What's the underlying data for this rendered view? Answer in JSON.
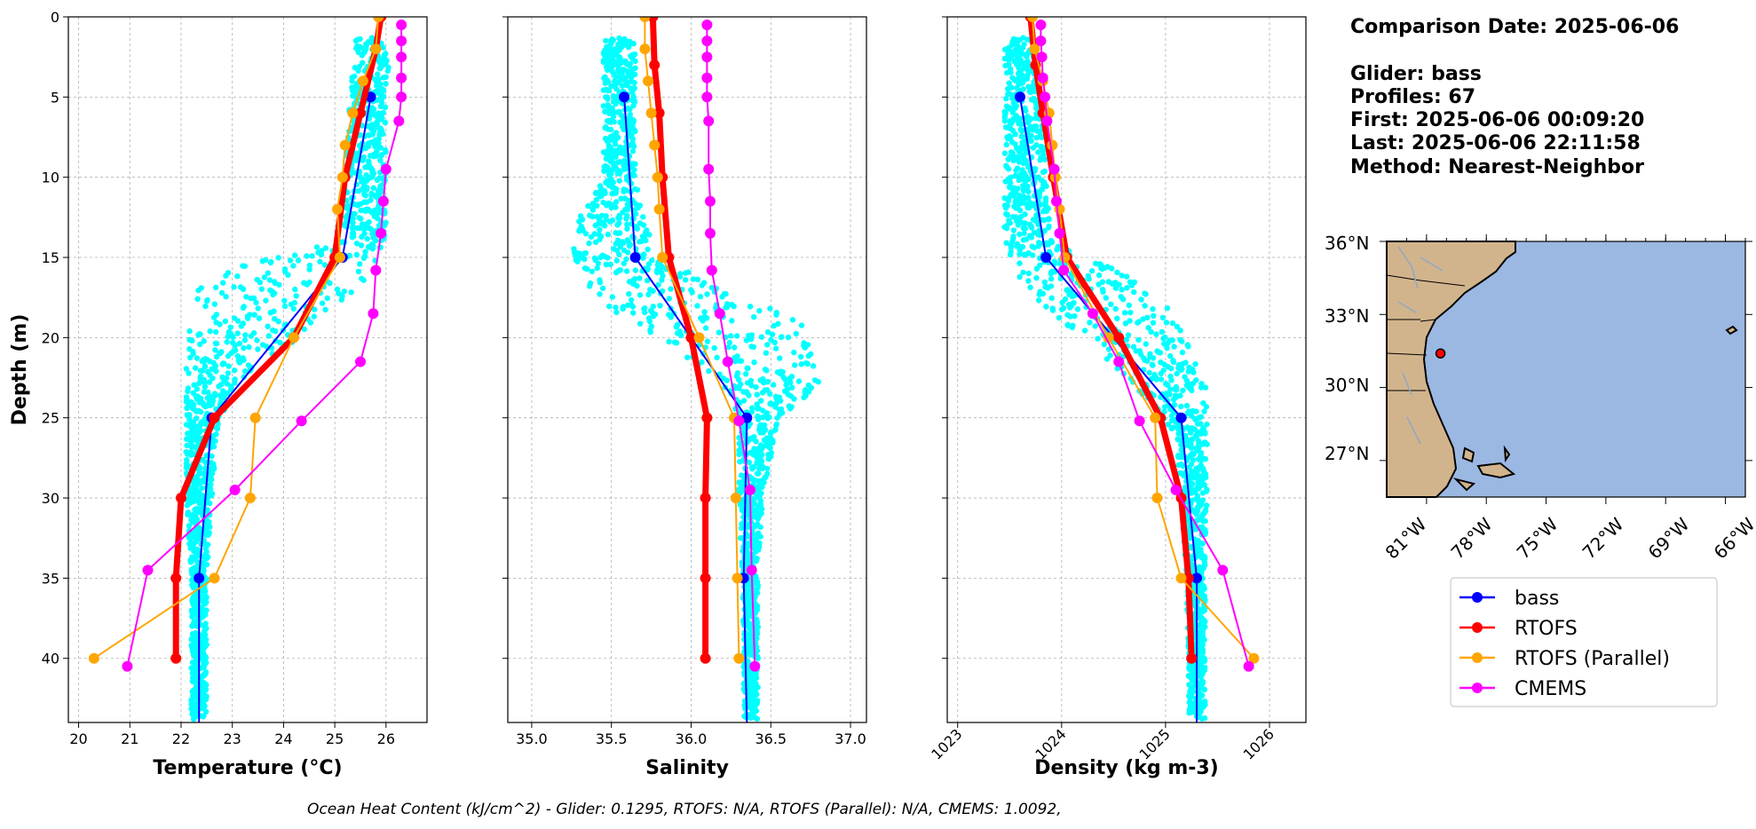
{
  "info": {
    "comparison_date": "Comparison Date: 2025-06-06",
    "glider": "Glider: bass",
    "profiles": "Profiles: 67",
    "first": "First: 2025-06-06 00:09:20",
    "last": "Last: 2025-06-06 22:11:58",
    "method": "Method: Nearest-Neighbor"
  },
  "footer": "Ocean Heat Content (kJ/cm^2) - Glider: 0.1295,  RTOFS: N/A,  RTOFS (Parallel): N/A,  CMEMS: 1.0092,",
  "colors": {
    "glider_points": "#00ffff",
    "bass": "#0000ff",
    "rtofs": "#ff0000",
    "rtofs_parallel": "#ffa500",
    "cmems": "#ff00ff",
    "ocean": "#9bb8e2",
    "land": "#d2b48c"
  },
  "legend": [
    {
      "name": "bass",
      "color": "#0000ff"
    },
    {
      "name": "RTOFS",
      "color": "#ff0000"
    },
    {
      "name": "RTOFS (Parallel)",
      "color": "#ffa500"
    },
    {
      "name": "CMEMS",
      "color": "#ff00ff"
    }
  ],
  "map": {
    "lat_labels": [
      "36°N",
      "33°N",
      "30°N",
      "27°N"
    ],
    "lon_labels": [
      "81°W",
      "78°W",
      "75°W",
      "72°W",
      "69°W",
      "66°W"
    ],
    "marker": {
      "lon": -80.3,
      "lat": 31.4
    }
  },
  "chart_data": [
    {
      "type": "line",
      "id": "temperature",
      "xlabel": "Temperature (°C)",
      "ylabel": "Depth (m)",
      "xlim": [
        19.8,
        26.8
      ],
      "ylim": [
        44,
        0
      ],
      "xticks": [
        20,
        21,
        22,
        23,
        24,
        25,
        26
      ],
      "yticks": [
        0,
        5,
        10,
        15,
        20,
        25,
        30,
        35,
        40
      ],
      "grid": true,
      "scatter_profile": [
        {
          "depth": 1.5,
          "min": 25.4,
          "max": 26.1
        },
        {
          "depth": 5,
          "min": 25.3,
          "max": 26.0
        },
        {
          "depth": 10,
          "min": 25.2,
          "max": 26.0
        },
        {
          "depth": 14,
          "min": 25.1,
          "max": 26.0
        },
        {
          "depth": 15.5,
          "min": 23.2,
          "max": 25.8
        },
        {
          "depth": 17,
          "min": 22.2,
          "max": 25.5
        },
        {
          "depth": 20,
          "min": 22.1,
          "max": 24.3
        },
        {
          "depth": 23,
          "min": 22.1,
          "max": 23.0
        },
        {
          "depth": 26,
          "min": 22.1,
          "max": 22.7
        },
        {
          "depth": 30,
          "min": 22.1,
          "max": 22.6
        },
        {
          "depth": 35,
          "min": 22.2,
          "max": 22.5
        },
        {
          "depth": 40,
          "min": 22.2,
          "max": 22.5
        },
        {
          "depth": 43.5,
          "min": 22.2,
          "max": 22.5
        }
      ],
      "series": [
        {
          "name": "bass",
          "color": "#0000ff",
          "width": 2,
          "x": [
            25.7,
            25.15,
            22.6,
            22.35,
            22.35
          ],
          "y": [
            5,
            15,
            25,
            35,
            44
          ]
        },
        {
          "name": "RTOFS",
          "color": "#ff0000",
          "width": 7,
          "x": [
            25.9,
            25.8,
            25.5,
            25.2,
            25.0,
            24.2,
            22.65,
            22.0,
            21.9,
            21.9
          ],
          "y": [
            0,
            2,
            6,
            10,
            15,
            20,
            25,
            30,
            35,
            40
          ]
        },
        {
          "name": "RTOFS (Parallel)",
          "color": "#ffa500",
          "width": 2,
          "x": [
            25.85,
            25.8,
            25.55,
            25.35,
            25.2,
            25.15,
            25.05,
            25.1,
            24.2,
            23.45,
            23.35,
            22.65,
            20.3
          ],
          "y": [
            0,
            2,
            4,
            6,
            8,
            10,
            12,
            15,
            20,
            25,
            30,
            35,
            40
          ]
        },
        {
          "name": "CMEMS",
          "color": "#ff00ff",
          "width": 2,
          "x": [
            26.3,
            26.3,
            26.3,
            26.3,
            26.3,
            26.25,
            26.0,
            25.95,
            25.9,
            25.8,
            25.75,
            25.5,
            24.35,
            23.05,
            21.35,
            20.95
          ],
          "y": [
            0.5,
            1.5,
            2.5,
            3.8,
            5,
            6.5,
            9.5,
            11.5,
            13.5,
            15.8,
            18.5,
            21.5,
            25.2,
            29.5,
            34.5,
            40.5
          ]
        }
      ]
    },
    {
      "type": "line",
      "id": "salinity",
      "xlabel": "Salinity",
      "ylabel": "",
      "xlim": [
        34.85,
        37.1
      ],
      "ylim": [
        44,
        0
      ],
      "xticks": [
        35.0,
        35.5,
        36.0,
        36.5,
        37.0
      ],
      "yticks": [
        0,
        5,
        10,
        15,
        20,
        25,
        30,
        35,
        40
      ],
      "grid": true,
      "scatter_profile": [
        {
          "depth": 1.5,
          "min": 35.45,
          "max": 35.65
        },
        {
          "depth": 5,
          "min": 35.45,
          "max": 35.65
        },
        {
          "depth": 10,
          "min": 35.45,
          "max": 35.65
        },
        {
          "depth": 12.5,
          "min": 35.3,
          "max": 35.7
        },
        {
          "depth": 15,
          "min": 35.25,
          "max": 35.8
        },
        {
          "depth": 17,
          "min": 35.35,
          "max": 36.2
        },
        {
          "depth": 19,
          "min": 35.6,
          "max": 36.7
        },
        {
          "depth": 21,
          "min": 35.9,
          "max": 36.8
        },
        {
          "depth": 23,
          "min": 36.2,
          "max": 36.8
        },
        {
          "depth": 25,
          "min": 36.3,
          "max": 36.55
        },
        {
          "depth": 30,
          "min": 36.3,
          "max": 36.45
        },
        {
          "depth": 35,
          "min": 36.32,
          "max": 36.42
        },
        {
          "depth": 40,
          "min": 36.33,
          "max": 36.42
        },
        {
          "depth": 43.5,
          "min": 36.33,
          "max": 36.42
        }
      ],
      "series": [
        {
          "name": "bass",
          "color": "#0000ff",
          "width": 2,
          "x": [
            35.58,
            35.65,
            36.35,
            36.33,
            36.35
          ],
          "y": [
            5,
            15,
            25,
            35,
            44
          ]
        },
        {
          "name": "RTOFS",
          "color": "#ff0000",
          "width": 7,
          "x": [
            35.76,
            35.77,
            35.8,
            35.82,
            35.86,
            36.0,
            36.1,
            36.09,
            36.09,
            36.09
          ],
          "y": [
            0,
            3,
            6,
            10,
            15,
            20,
            25,
            30,
            35,
            40
          ]
        },
        {
          "name": "RTOFS (Parallel)",
          "color": "#ffa500",
          "width": 2,
          "x": [
            35.71,
            35.71,
            35.73,
            35.75,
            35.77,
            35.79,
            35.8,
            35.82,
            36.05,
            36.27,
            36.28,
            36.29,
            36.3
          ],
          "y": [
            0,
            2,
            4,
            6,
            8,
            10,
            12,
            15,
            20,
            25,
            30,
            35,
            40
          ]
        },
        {
          "name": "CMEMS",
          "color": "#ff00ff",
          "width": 2,
          "x": [
            36.1,
            36.1,
            36.1,
            36.1,
            36.1,
            36.11,
            36.11,
            36.12,
            36.12,
            36.13,
            36.18,
            36.23,
            36.3,
            36.37,
            36.38,
            36.4
          ],
          "y": [
            0.5,
            1.5,
            2.5,
            3.8,
            5,
            6.5,
            9.5,
            11.5,
            13.5,
            15.8,
            18.5,
            21.5,
            25.2,
            29.5,
            34.5,
            40.5
          ]
        }
      ]
    },
    {
      "type": "line",
      "id": "density",
      "xlabel": "Density (kg m-3)",
      "ylabel": "",
      "xlim": [
        1022.9,
        1026.35
      ],
      "ylim": [
        44,
        0
      ],
      "xticks": [
        1023,
        1024,
        1025,
        1026
      ],
      "yticks": [
        0,
        5,
        10,
        15,
        20,
        25,
        30,
        35,
        40
      ],
      "grid": true,
      "scatter_profile": [
        {
          "depth": 1.5,
          "min": 1023.45,
          "max": 1023.75
        },
        {
          "depth": 5,
          "min": 1023.45,
          "max": 1023.8
        },
        {
          "depth": 10,
          "min": 1023.45,
          "max": 1023.85
        },
        {
          "depth": 14,
          "min": 1023.45,
          "max": 1023.9
        },
        {
          "depth": 16,
          "min": 1023.55,
          "max": 1024.6
        },
        {
          "depth": 18,
          "min": 1023.8,
          "max": 1025.05
        },
        {
          "depth": 20,
          "min": 1024.2,
          "max": 1025.2
        },
        {
          "depth": 23,
          "min": 1024.7,
          "max": 1025.4
        },
        {
          "depth": 26,
          "min": 1025.1,
          "max": 1025.4
        },
        {
          "depth": 30,
          "min": 1025.15,
          "max": 1025.4
        },
        {
          "depth": 35,
          "min": 1025.2,
          "max": 1025.38
        },
        {
          "depth": 40,
          "min": 1025.22,
          "max": 1025.38
        },
        {
          "depth": 43.5,
          "min": 1025.22,
          "max": 1025.38
        }
      ],
      "series": [
        {
          "name": "bass",
          "color": "#0000ff",
          "width": 2,
          "x": [
            1023.6,
            1023.85,
            1025.15,
            1025.3,
            1025.3
          ],
          "y": [
            5,
            15,
            25,
            35,
            44
          ]
        },
        {
          "name": "RTOFS",
          "color": "#ff0000",
          "width": 7,
          "x": [
            1023.7,
            1023.75,
            1023.82,
            1023.92,
            1024.05,
            1024.55,
            1024.95,
            1025.15,
            1025.22,
            1025.25
          ],
          "y": [
            0,
            3,
            6,
            10,
            15,
            20,
            25,
            30,
            35,
            40
          ]
        },
        {
          "name": "RTOFS (Parallel)",
          "color": "#ffa500",
          "width": 2,
          "x": [
            1023.72,
            1023.74,
            1023.82,
            1023.88,
            1023.91,
            1023.94,
            1023.98,
            1024.03,
            1024.45,
            1024.9,
            1024.92,
            1025.15,
            1025.85
          ],
          "y": [
            0,
            2,
            4,
            6,
            8,
            10,
            12,
            15,
            20,
            25,
            30,
            35,
            40
          ]
        },
        {
          "name": "CMEMS",
          "color": "#ff00ff",
          "width": 2,
          "x": [
            1023.8,
            1023.8,
            1023.81,
            1023.82,
            1023.84,
            1023.86,
            1023.93,
            1023.95,
            1023.98,
            1024.02,
            1024.3,
            1024.55,
            1024.75,
            1025.1,
            1025.55,
            1025.8
          ],
          "y": [
            0.5,
            1.5,
            2.5,
            3.8,
            5,
            6.5,
            9.5,
            11.5,
            13.5,
            15.8,
            18.5,
            21.5,
            25.2,
            29.5,
            34.5,
            40.5
          ]
        }
      ]
    }
  ]
}
